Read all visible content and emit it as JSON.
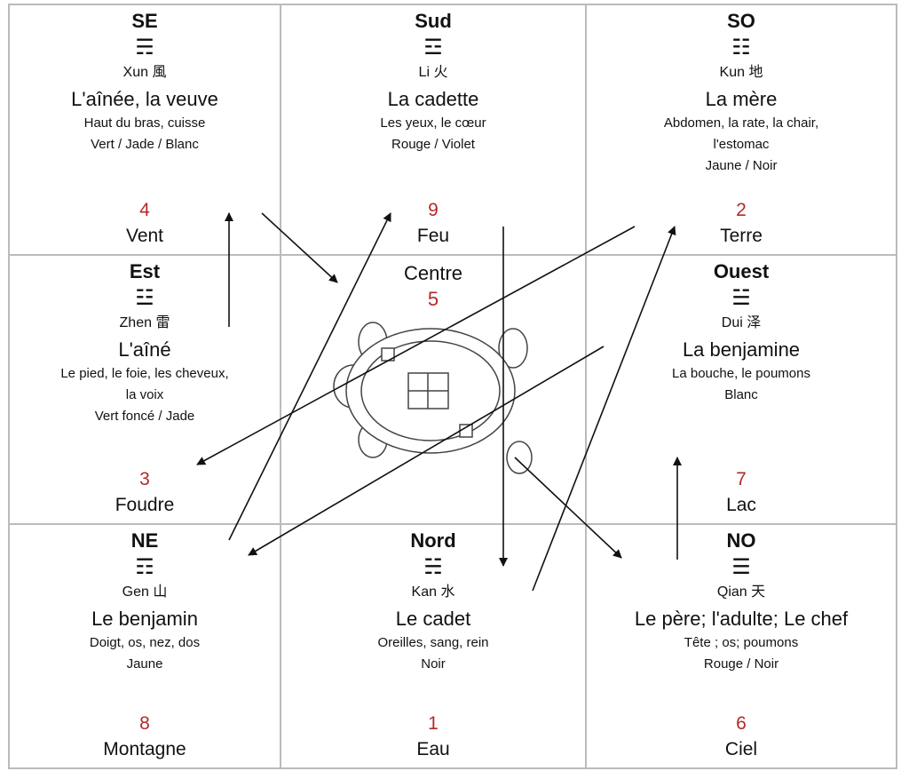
{
  "cells": [
    {
      "direction": "SE",
      "trigram": "☴",
      "name": "Xun 風",
      "role": "L'aînée, la veuve",
      "details": [
        "Haut du bras, cuisse",
        "Vert / Jade / Blanc"
      ],
      "number": "4",
      "element": "Vent"
    },
    {
      "direction": "Sud",
      "trigram": "☲",
      "name": "Li 火",
      "role": "La cadette",
      "details": [
        "Les yeux, le cœur",
        "Rouge / Violet"
      ],
      "number": "9",
      "element": "Feu"
    },
    {
      "direction": "SO",
      "trigram": "☷",
      "name": "Kun 地",
      "role": "La mère",
      "details": [
        "Abdomen, la rate, la chair,",
        "l'estomac",
        "Jaune / Noir"
      ],
      "number": "2",
      "element": "Terre"
    },
    {
      "direction": "Est",
      "trigram": "☳",
      "name": "Zhen 雷",
      "role": "L'aîné",
      "details": [
        "Le pied, le foie, les cheveux,",
        "la voix",
        "Vert foncé / Jade"
      ],
      "number": "3",
      "element": "Foudre"
    },
    {
      "direction": "Ouest",
      "trigram": "☱",
      "name": "Dui 泽",
      "role": "La benjamine",
      "details": [
        "La bouche, le poumons",
        "Blanc"
      ],
      "number": "7",
      "element": "Lac"
    },
    {
      "direction": "NE",
      "trigram": "☶",
      "name": "Gen 山",
      "role": "Le benjamin",
      "details": [
        "Doigt, os, nez, dos",
        "Jaune"
      ],
      "number": "8",
      "element": "Montagne"
    },
    {
      "direction": "Nord",
      "trigram": "☵",
      "name": "Kan 水",
      "role": "Le cadet",
      "details": [
        "Oreilles, sang, rein",
        "Noir"
      ],
      "number": "1",
      "element": "Eau"
    },
    {
      "direction": "NO",
      "trigram": "☰",
      "name": "Qian 天",
      "role": "Le père; l'adulte; Le chef",
      "details": [
        "Tête ; os; poumons",
        "Rouge / Noir"
      ],
      "number": "6",
      "element": "Ciel"
    }
  ],
  "centre": {
    "label": "Centre",
    "number": "5"
  }
}
